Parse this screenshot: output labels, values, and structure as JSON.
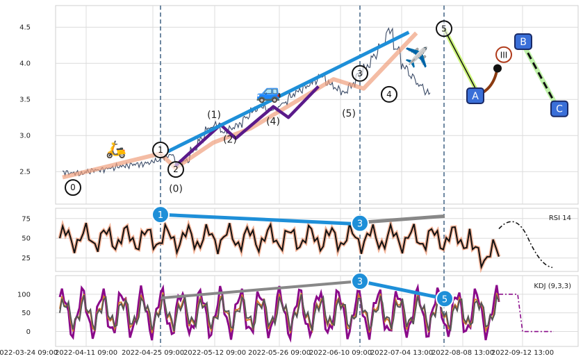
{
  "chart_data": {
    "type": "line",
    "x_tick_labels": [
      "2022-03-24 09:00",
      "2022-04-11 09:00",
      "2022-04-25 09:00",
      "2022-05-12 09:00",
      "2022-05-26 09:00",
      "2022-06-10 09:00",
      "2022-07-04 13:00",
      "2022-08-08 13:00",
      "2022-09-12 13:00"
    ],
    "price_panel": {
      "ylim": [
        2.05,
        4.8
      ],
      "yticks": [
        "2.5",
        "3.0",
        "3.5",
        "4.0",
        "4.5"
      ],
      "series": [
        {
          "values": [
            2.49,
            2.48,
            2.47,
            2.5,
            2.52,
            2.53,
            2.55,
            2.57,
            2.58,
            2.6,
            2.6,
            2.62,
            2.65,
            2.7,
            2.73,
            2.6,
            2.65,
            2.8,
            2.95,
            3.1,
            3.15,
            3.05,
            3.1,
            3.15,
            3.25,
            3.35,
            3.4,
            3.35,
            3.38,
            3.45,
            3.55,
            3.62,
            3.68,
            3.75,
            3.82,
            3.72,
            3.65,
            3.6,
            3.7,
            3.85,
            3.95,
            4.1,
            4.25,
            4.45,
            4.2,
            3.95,
            3.82,
            3.7,
            3.6
          ]
        }
      ],
      "wave_labels": [
        "0",
        "1",
        "2",
        "3",
        "4",
        "5",
        "(0)",
        "(1)",
        "(2)",
        "(4)",
        "(5)",
        "A",
        "B",
        "C",
        "III",
        "II"
      ],
      "wave_points": [
        {
          "label": "0",
          "x": 0,
          "y": 2.28
        },
        {
          "label": "1",
          "x": 13,
          "y": 2.8
        },
        {
          "label": "2",
          "x": 15,
          "y": 2.53
        },
        {
          "label": "3",
          "x": 36,
          "y": 3.85
        },
        {
          "label": "4",
          "x": 40,
          "y": 3.57
        },
        {
          "label": "5",
          "x": 47,
          "y": 4.48
        },
        {
          "label": "A",
          "x": 52,
          "y": 3.55
        },
        {
          "label": "B",
          "x": 57,
          "y": 4.3
        },
        {
          "label": "C",
          "x": 62,
          "y": 3.37
        }
      ]
    },
    "rsi_panel": {
      "label": "RSI 14",
      "ylim": [
        8,
        88
      ],
      "yticks": [
        "25",
        "50",
        "75"
      ],
      "divergence_labels": [
        "1",
        "3"
      ]
    },
    "kdj_panel": {
      "label": "KDJ (9,3,3)",
      "ylim": [
        -40,
        150
      ],
      "yticks": [
        "0",
        "50",
        "100"
      ],
      "divergence_labels": [
        "3",
        "5"
      ]
    }
  }
}
